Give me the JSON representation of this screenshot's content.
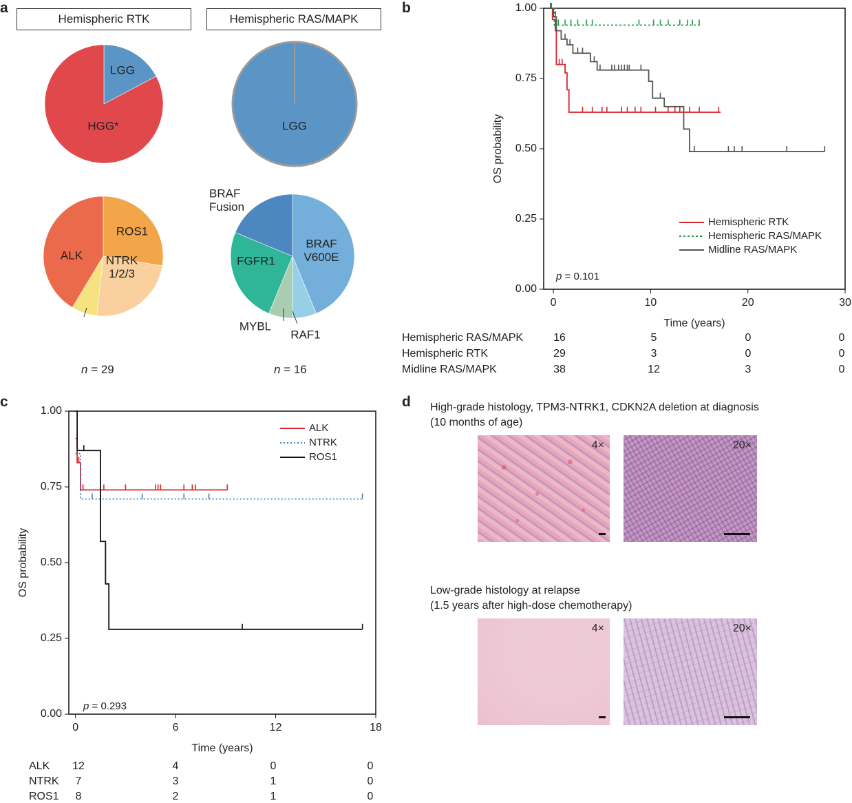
{
  "panel_labels": {
    "a": "a",
    "b": "b",
    "c": "c",
    "d": "d"
  },
  "panel_a": {
    "title_left": "Hemispheric RTK",
    "title_right": "Hemispheric RAS/MAPK",
    "n_left_prefix": "n",
    "n_left_value": " = 29",
    "n_right_prefix": "n",
    "n_right_value": " = 16"
  },
  "panel_b": {
    "p_prefix": "p",
    "p_value": " = 0.101",
    "risk_rows": [
      {
        "label": "Hemispheric RAS/MAPK",
        "counts": [
          "16",
          "5",
          "0",
          "0"
        ]
      },
      {
        "label": "Hemispheric RTK",
        "counts": [
          "29",
          "3",
          "0",
          "0"
        ]
      },
      {
        "label": "Midline RAS/MAPK",
        "counts": [
          "38",
          "12",
          "3",
          "0"
        ]
      }
    ]
  },
  "panel_c": {
    "p_prefix": "p",
    "p_value": " = 0.293",
    "risk_rows": [
      {
        "label": "ALK",
        "counts": [
          "12",
          "4",
          "0",
          "0"
        ]
      },
      {
        "label": "NTRK",
        "counts": [
          "7",
          "3",
          "1",
          "0"
        ]
      },
      {
        "label": "ROS1",
        "counts": [
          "8",
          "2",
          "1",
          "0"
        ]
      }
    ]
  },
  "panel_d": {
    "caption_top_line1": "High-grade histology, TPM3-NTRK1, CDKN2A deletion at diagnosis",
    "caption_top_line2": "(10 months of age)",
    "caption_bottom_line1": "Low-grade histology at relapse",
    "caption_bottom_line2": "(1.5 years after high-dose chemotherapy)",
    "mag_low": "4×",
    "mag_high": "20×"
  },
  "chart_data": [
    {
      "type": "pie",
      "id": "grade_rtk",
      "labels": [
        "LGG",
        "HGG*"
      ],
      "values": [
        5,
        24
      ],
      "colors": [
        "#5b95c6",
        "#e0484c"
      ]
    },
    {
      "type": "pie",
      "id": "grade_ras",
      "labels": [
        "LGG"
      ],
      "values": [
        16
      ],
      "colors": [
        "#5b95c6"
      ]
    },
    {
      "type": "pie",
      "id": "fusion_rtk",
      "labels": [
        "ROS1",
        "NTRK\n1/2/3",
        "",
        "ALK"
      ],
      "values": [
        8,
        7,
        2,
        12
      ],
      "colors": [
        "#f3a54a",
        "#f9d09e",
        "#f6e27f",
        "#ec6a4c"
      ]
    },
    {
      "type": "pie",
      "id": "alteration_ras",
      "labels": [
        "BRAF\nV600E",
        "RAF1",
        "MYBL",
        "FGFR1",
        "BRAF\nFusion"
      ],
      "values": [
        7,
        1,
        1,
        4,
        3
      ],
      "colors": [
        "#74aedb",
        "#97cfe6",
        "#a8cdb1",
        "#2fb597",
        "#4d87c0"
      ]
    },
    {
      "type": "line",
      "id": "km_b",
      "subtype": "kaplan-meier",
      "xlabel": "Time (years)",
      "ylabel": "OS probability",
      "xlim": [
        -1,
        30
      ],
      "ylim": [
        0,
        1
      ],
      "xticks": [
        0,
        10,
        20,
        30
      ],
      "yticks": [
        "0.00",
        "0.25",
        "0.50",
        "0.75",
        "1.00"
      ],
      "series": [
        {
          "name": "Hemispheric RTK",
          "color": "#d7262a",
          "dash": "",
          "steps": [
            [
              -0.3,
              1.0
            ],
            [
              -0.1,
              0.96
            ],
            [
              0.2,
              0.92
            ],
            [
              0.3,
              0.8
            ],
            [
              1.2,
              0.77
            ],
            [
              1.4,
              0.71
            ],
            [
              1.6,
              0.63
            ],
            [
              17.2,
              0.63
            ]
          ],
          "censors": [
            0.6,
            0.9,
            3.0,
            4.0,
            5.0,
            5.5,
            7.0,
            7.6,
            8.4,
            9.0,
            10.5,
            11.8,
            12.5,
            13.0,
            14.0,
            15.0,
            17.0
          ]
        },
        {
          "name": "Hemispheric RAS/MAPK",
          "color": "#1f9c4f",
          "dash": "3,3",
          "steps": [
            [
              -0.4,
              1.0
            ],
            [
              0.1,
              0.94
            ],
            [
              15.2,
              0.94
            ]
          ],
          "censors": [
            -0.2,
            0.5,
            1.2,
            1.8,
            2.5,
            3.4,
            4.0,
            8.8,
            10.3,
            11.0,
            11.8,
            13.0,
            13.8,
            14.3,
            15.0
          ]
        },
        {
          "name": "Midline RAS/MAPK",
          "color": "#555555",
          "dash": "",
          "steps": [
            [
              -0.4,
              1.0
            ],
            [
              0.0,
              0.97
            ],
            [
              0.3,
              0.92
            ],
            [
              0.8,
              0.89
            ],
            [
              1.4,
              0.87
            ],
            [
              2.0,
              0.84
            ],
            [
              3.8,
              0.81
            ],
            [
              4.5,
              0.78
            ],
            [
              9.8,
              0.74
            ],
            [
              10.2,
              0.68
            ],
            [
              11.4,
              0.65
            ],
            [
              13.4,
              0.57
            ],
            [
              14.0,
              0.49
            ],
            [
              27.9,
              0.49
            ]
          ],
          "censors": [
            -0.3,
            0.2,
            1.2,
            1.7,
            2.5,
            3.0,
            4.2,
            4.8,
            6.0,
            6.3,
            6.7,
            7.0,
            7.3,
            7.6,
            7.8,
            9.0,
            11.0,
            14.5,
            18.0,
            18.6,
            19.4,
            24.0,
            27.9
          ]
        }
      ]
    },
    {
      "type": "line",
      "id": "km_c",
      "subtype": "kaplan-meier",
      "xlabel": "Time (years)",
      "ylabel": "OS probability",
      "xlim": [
        -0.4,
        18
      ],
      "ylim": [
        0,
        1
      ],
      "xticks": [
        0,
        6,
        12,
        18
      ],
      "yticks": [
        "0.00",
        "0.25",
        "0.50",
        "0.75",
        "1.00"
      ],
      "series": [
        {
          "name": "ALK",
          "color": "#d7262a",
          "dash": "",
          "steps": [
            [
              0.0,
              0.91
            ],
            [
              0.1,
              0.83
            ],
            [
              0.3,
              0.74
            ],
            [
              9.1,
              0.74
            ]
          ],
          "censors": [
            0.2,
            0.45,
            1.7,
            3.0,
            4.8,
            4.95,
            5.1,
            6.5,
            7.0,
            7.2,
            9.1
          ]
        },
        {
          "name": "NTRK",
          "color": "#3b7fc0",
          "dash": "2,3",
          "steps": [
            [
              0.0,
              0.86
            ],
            [
              0.3,
              0.71
            ],
            [
              17.2,
              0.71
            ]
          ],
          "censors": [
            1.0,
            4.0,
            6.5,
            8.0,
            17.2
          ]
        },
        {
          "name": "ROS1",
          "color": "#111111",
          "dash": "",
          "steps": [
            [
              0.0,
              1.0
            ],
            [
              0.1,
              0.87
            ],
            [
              1.5,
              0.57
            ],
            [
              1.8,
              0.43
            ],
            [
              2.0,
              0.28
            ],
            [
              17.2,
              0.28
            ]
          ],
          "censors": [
            0.5,
            10.0,
            17.2
          ]
        }
      ]
    }
  ]
}
